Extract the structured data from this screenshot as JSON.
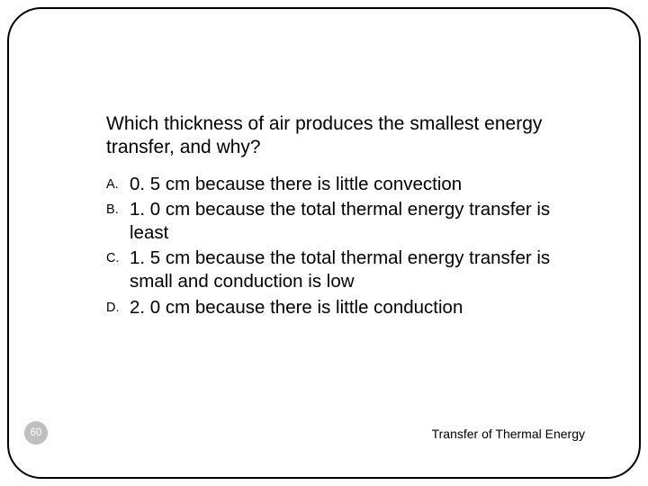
{
  "slide": {
    "number": "60",
    "footer": "Transfer of Thermal Energy",
    "question": "Which thickness of air produces the smallest energy transfer, and why?",
    "options": [
      {
        "letter": "A.",
        "text": "0. 5 cm because there is little convection"
      },
      {
        "letter": "B.",
        "text": "1. 0 cm because the total thermal energy transfer is least"
      },
      {
        "letter": "C.",
        "text": "1. 5 cm because the total thermal energy transfer is small and conduction is low"
      },
      {
        "letter": "D.",
        "text": "2. 0 cm because there is little conduction"
      }
    ]
  },
  "style": {
    "background_color": "#ffffff",
    "frame_border_color": "#000000",
    "frame_border_radius": 38,
    "frame_border_width": 2,
    "text_color": "#000000",
    "question_fontsize": 21,
    "option_fontsize": 20.5,
    "option_letter_fontsize": 14.5,
    "footer_fontsize": 14,
    "slide_number_bg": "#bfbfbf",
    "slide_number_fg": "#ffffff",
    "slide_number_fontsize": 11.5,
    "font_family": "Arial"
  }
}
